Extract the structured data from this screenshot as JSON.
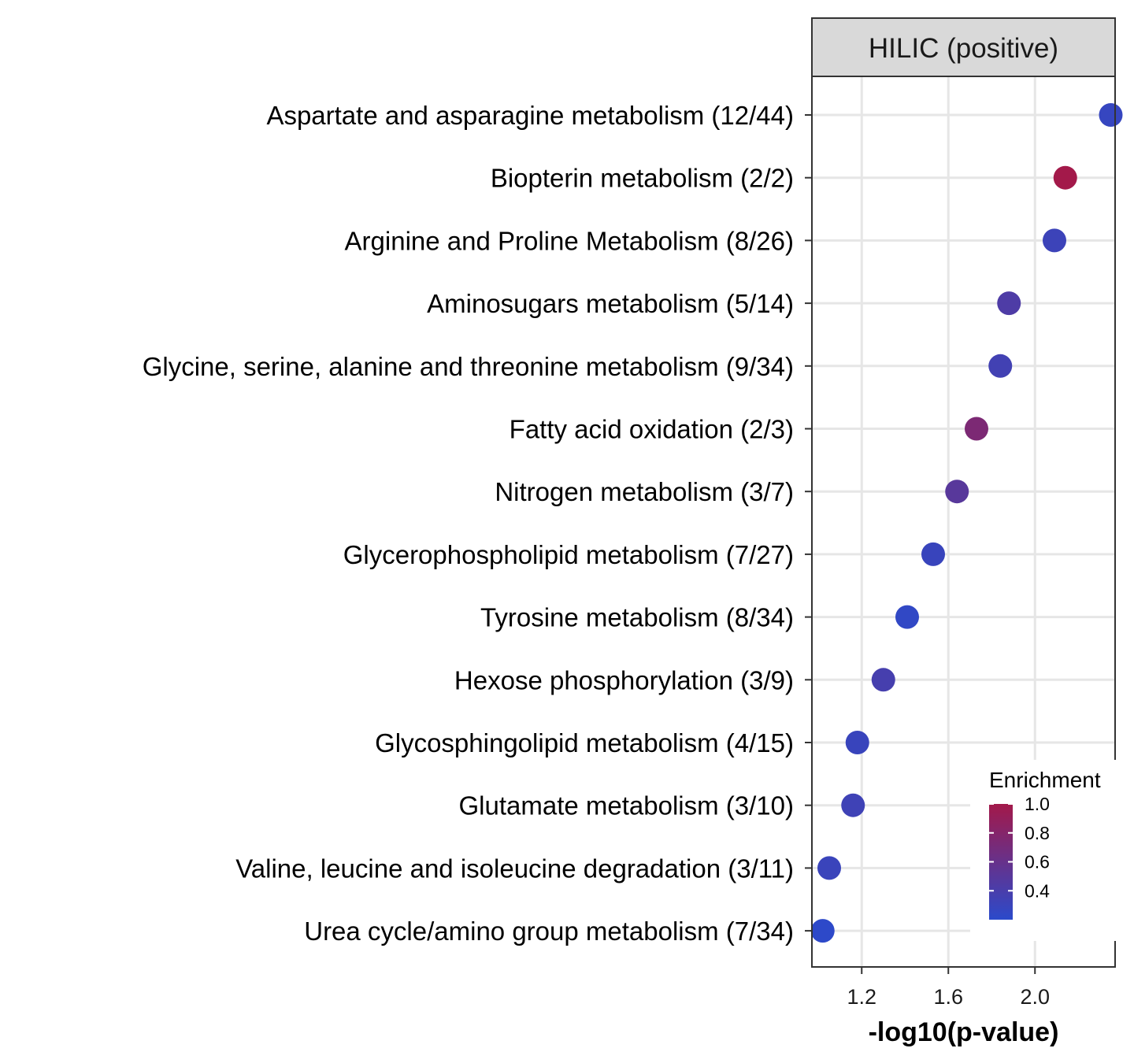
{
  "chart_data": {
    "type": "scatter",
    "facet_label": "HILIC (positive)",
    "xlabel": "-log10(p-value)",
    "ylabel": "",
    "xlim": [
      0.97,
      2.37
    ],
    "x_ticks": [
      "1.2",
      "1.6",
      "2.0"
    ],
    "grid": true,
    "categories": [
      "Aspartate and asparagine metabolism (12/44)",
      "Biopterin metabolism (2/2)",
      "Arginine and Proline Metabolism (8/26)",
      "Aminosugars metabolism (5/14)",
      "Glycine, serine, alanine and threonine metabolism (9/34)",
      "Fatty acid oxidation (2/3)",
      "Nitrogen metabolism (3/7)",
      "Glycerophospholipid metabolism (7/27)",
      "Tyrosine metabolism (8/34)",
      "Hexose phosphorylation (3/9)",
      "Glycosphingolipid metabolism (4/15)",
      "Glutamate metabolism (3/10)",
      "Valine, leucine and isoleucine degradation (3/11)",
      "Urea cycle/amino group metabolism (7/34)"
    ],
    "x": [
      2.35,
      2.14,
      2.09,
      1.88,
      1.84,
      1.73,
      1.64,
      1.53,
      1.41,
      1.3,
      1.18,
      1.16,
      1.05,
      1.02
    ],
    "enrichment": [
      0.27,
      1.0,
      0.31,
      0.43,
      0.35,
      0.74,
      0.5,
      0.29,
      0.24,
      0.38,
      0.29,
      0.33,
      0.3,
      0.21
    ],
    "legend": {
      "title": "Enrichment",
      "position": "bottom-right",
      "range": [
        0.2,
        1.0
      ],
      "ticks": [
        "1.0",
        "0.8",
        "0.6",
        "0.4"
      ],
      "colors": {
        "low": "#2b4acb",
        "high": "#a3194a"
      }
    }
  }
}
